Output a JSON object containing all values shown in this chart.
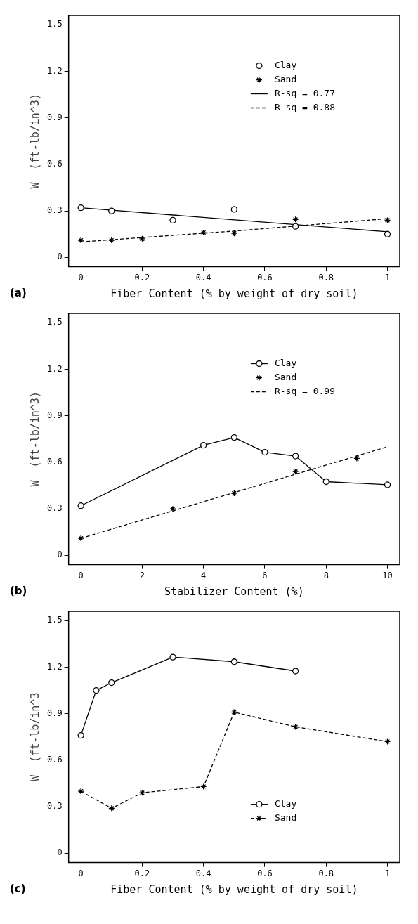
{
  "chart_data": [
    {
      "type": "scatter",
      "xlabel": "Fiber Content (% by weight of dry soil)",
      "ylabel": "W  (ft-lb/in^3)",
      "annotations": [
        "(a)"
      ],
      "xlim": [
        -0.04,
        1.04
      ],
      "xticks": [
        0,
        0.2,
        0.4,
        0.6,
        0.8,
        1
      ],
      "ylim": [
        -0.06,
        1.56
      ],
      "yticks": [
        0,
        0.3,
        0.6,
        0.9,
        1.2,
        1.5
      ],
      "legend": "top right",
      "grid": false,
      "series": [
        {
          "name": "Clay",
          "marker": "circle",
          "color": "#000000",
          "x": [
            0,
            0.1,
            0.3,
            0.5,
            0.7,
            1
          ],
          "values": [
            0.32,
            0.3,
            0.24,
            0.31,
            0.2,
            0.15
          ]
        },
        {
          "name": "Sand",
          "marker": "cross",
          "color": "#000000",
          "x": [
            0,
            0.1,
            0.2,
            0.4,
            0.5,
            0.7,
            1
          ],
          "values": [
            0.11,
            0.11,
            0.12,
            0.16,
            0.155,
            0.245,
            0.24
          ]
        },
        {
          "name": "R-sq = 0.77",
          "type": "line",
          "marker": "none",
          "line_style": "solid",
          "color": "#000000",
          "x": [
            0,
            1
          ],
          "values": [
            0.32,
            0.165
          ]
        },
        {
          "name": "R-sq = 0.88",
          "type": "line",
          "marker": "none",
          "line_style": "dashed",
          "color": "#000000",
          "x": [
            0,
            0.5,
            1
          ],
          "values": [
            0.1,
            0.17,
            0.25
          ]
        }
      ]
    },
    {
      "type": "scatter",
      "xlabel": "Stabilizer Content (%)",
      "ylabel": "W  (ft-lb/in^3)",
      "annotations": [
        "(b)"
      ],
      "xlim": [
        -0.4,
        10.4
      ],
      "xticks": [
        0,
        2,
        4,
        6,
        8,
        10
      ],
      "ylim": [
        -0.06,
        1.56
      ],
      "yticks": [
        0,
        0.3,
        0.6,
        0.9,
        1.2,
        1.5
      ],
      "legend": "top right",
      "grid": false,
      "series": [
        {
          "name": "Clay",
          "type": "line",
          "marker": "circle",
          "line_style": "solid",
          "color": "#000000",
          "x": [
            0,
            4,
            5,
            6,
            7,
            8,
            10
          ],
          "values": [
            0.32,
            0.71,
            0.76,
            0.665,
            0.64,
            0.475,
            0.455
          ]
        },
        {
          "name": "Sand",
          "marker": "cross",
          "color": "#000000",
          "x": [
            0,
            3,
            5,
            7,
            9
          ],
          "values": [
            0.11,
            0.3,
            0.4,
            0.54,
            0.625
          ]
        },
        {
          "name": "R-sq = 0.99",
          "type": "line",
          "marker": "none",
          "line_style": "dashed",
          "color": "#000000",
          "x": [
            0,
            10
          ],
          "values": [
            0.11,
            0.7
          ]
        }
      ]
    },
    {
      "type": "line",
      "xlabel": "Fiber Content (% by weight of dry soil)",
      "ylabel": "W  (ft-lb/in^3",
      "annotations": [
        "(c)"
      ],
      "xlim": [
        -0.04,
        1.04
      ],
      "xticks": [
        0,
        0.2,
        0.4,
        0.6,
        0.8,
        1
      ],
      "ylim": [
        -0.06,
        1.56
      ],
      "yticks": [
        0,
        0.3,
        0.6,
        0.9,
        1.2,
        1.5
      ],
      "legend": "bottom right",
      "grid": false,
      "series": [
        {
          "name": "Clay",
          "marker": "circle",
          "line_style": "solid",
          "color": "#000000",
          "x": [
            0,
            0.05,
            0.1,
            0.3,
            0.5,
            0.7
          ],
          "values": [
            0.76,
            1.05,
            1.1,
            1.265,
            1.235,
            1.175
          ]
        },
        {
          "name": "Sand",
          "marker": "cross",
          "line_style": "dashed",
          "color": "#000000",
          "x": [
            0,
            0.1,
            0.2,
            0.4,
            0.5,
            0.7,
            1
          ],
          "values": [
            0.4,
            0.29,
            0.39,
            0.43,
            0.91,
            0.815,
            0.72
          ]
        }
      ]
    }
  ]
}
